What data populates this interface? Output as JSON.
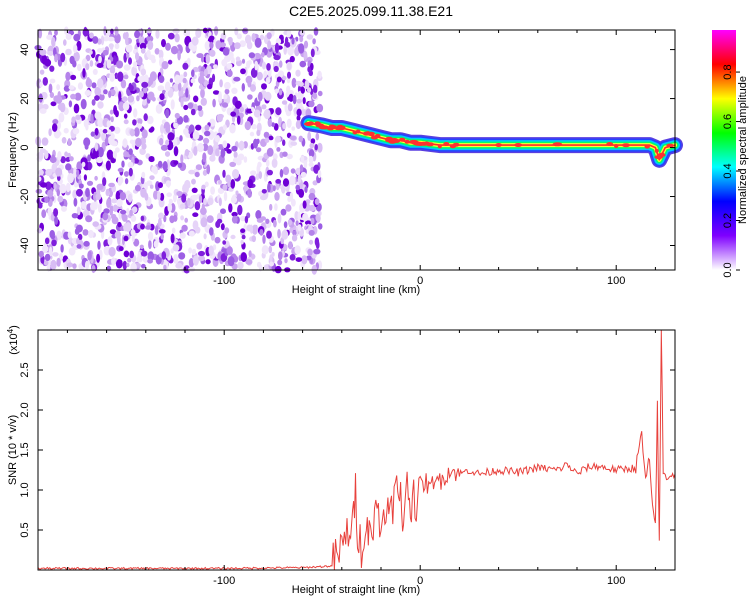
{
  "title": "C2E5.2025.099.11.38.E21",
  "chart_data": [
    {
      "type": "heatmap",
      "xlabel": "Height of straight line (km)",
      "ylabel": "Frequency (Hz)",
      "xlim": [
        -195,
        130
      ],
      "ylim": [
        -50,
        48
      ],
      "xticks": [
        -100,
        0,
        100
      ],
      "yticks": [
        -40,
        -20,
        0,
        20,
        40
      ],
      "xtick_labels": [
        "-100",
        "0",
        "100"
      ],
      "ytick_labels": [
        "-40",
        "-20",
        "0",
        "20",
        "40"
      ],
      "noise_region_x": [
        -195,
        -55
      ],
      "ridge": {
        "x": [
          -57,
          -50,
          -45,
          -40,
          -35,
          -30,
          -25,
          -20,
          -15,
          -10,
          -5,
          0,
          10,
          20,
          40,
          60,
          80,
          100,
          110,
          117,
          120,
          122,
          125,
          130
        ],
        "y": [
          10,
          9,
          8,
          8,
          7,
          6,
          5,
          4,
          3,
          3,
          2,
          2,
          1,
          1,
          1,
          1,
          1,
          1,
          1,
          1,
          0,
          -5,
          0,
          1
        ]
      },
      "colorbar": {
        "label": "Normalized spectral amplitude",
        "range": [
          0,
          0.97
        ],
        "ticks": [
          0.0,
          0.2,
          0.4,
          0.6,
          0.8
        ],
        "tick_labels": [
          "0.0",
          "0.2",
          "0.4",
          "0.6",
          "0.8"
        ],
        "colors": [
          "#ffffff",
          "#7f00ff",
          "#0000ff",
          "#00ffff",
          "#00ff00",
          "#ffff00",
          "#ff0000",
          "#ff00ff"
        ]
      }
    },
    {
      "type": "line",
      "xlabel": "Height of straight line (km)",
      "ylabel": "SNR (10 * v/v)",
      "y_multiplier_label": "(x10",
      "y_multiplier_exp": "4",
      "y_multiplier_close": ")",
      "xlim": [
        -195,
        130
      ],
      "ylim": [
        0,
        3.0
      ],
      "xticks": [
        -100,
        0,
        100
      ],
      "yticks": [
        0.5,
        1.0,
        1.5,
        2.0,
        2.5
      ],
      "xtick_labels": [
        "-100",
        "0",
        "100"
      ],
      "ytick_labels": [
        "0.5",
        "1.0",
        "1.5",
        "2.0",
        "2.5"
      ],
      "color": "#e8413c",
      "series": [
        {
          "x": [
            -195,
            -150,
            -100,
            -60,
            -45,
            -42,
            -40,
            -38,
            -36,
            -35,
            -34,
            -33,
            -32,
            -30,
            -28,
            -27,
            -26,
            -24,
            -22,
            -20,
            -18,
            -17,
            -16,
            -14,
            -12,
            -11,
            -10,
            -9,
            -8,
            -6,
            -5,
            -4,
            -2,
            0,
            3,
            5,
            8,
            10,
            15,
            20,
            25,
            30,
            40,
            50,
            60,
            70,
            75,
            80,
            85,
            90,
            100,
            110,
            113,
            115,
            116,
            117,
            118,
            119,
            120,
            121,
            122,
            123,
            124,
            125,
            127,
            130
          ],
          "y": [
            0.02,
            0.02,
            0.02,
            0.03,
            0.05,
            0.2,
            0.25,
            0.4,
            0.55,
            0.5,
            0.6,
            1.05,
            0.5,
            0.3,
            0.6,
            0.45,
            0.7,
            0.45,
            0.85,
            0.5,
            0.75,
            1.0,
            0.55,
            0.85,
            1.05,
            0.7,
            1.1,
            0.55,
            0.85,
            1.1,
            0.6,
            1.15,
            0.8,
            1.05,
            1.1,
            1.0,
            1.2,
            1.1,
            1.25,
            1.2,
            1.25,
            1.2,
            1.25,
            1.22,
            1.28,
            1.25,
            1.32,
            1.2,
            1.28,
            1.3,
            1.25,
            1.28,
            1.7,
            1.1,
            1.3,
            1.35,
            0.9,
            0.7,
            0.6,
            2.05,
            0.3,
            3.0,
            1.25,
            1.15,
            1.2,
            1.2
          ]
        }
      ]
    }
  ]
}
